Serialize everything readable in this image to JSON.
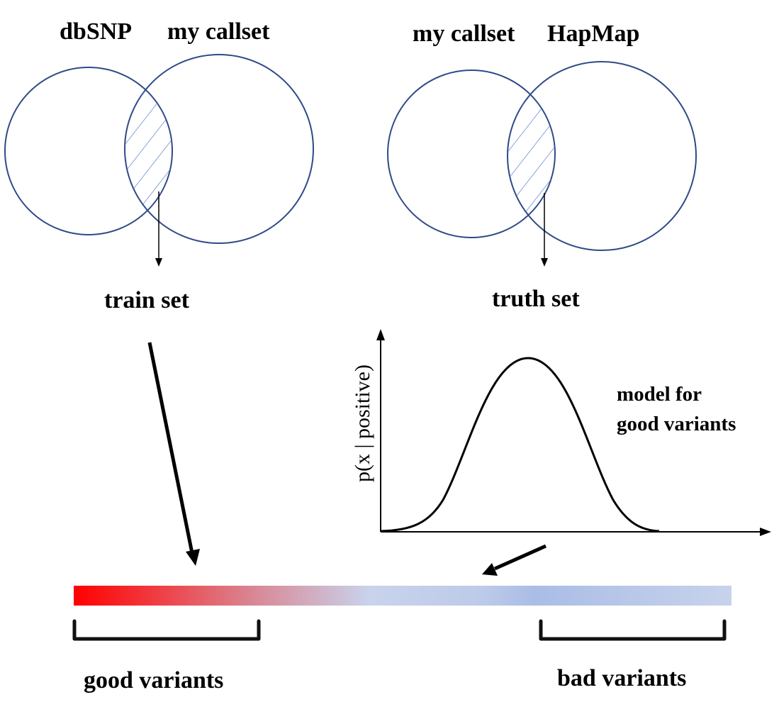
{
  "venn_left": {
    "set_a": "dbSNP",
    "set_b": "my callset",
    "result": "train set"
  },
  "venn_right": {
    "set_a": "my callset",
    "set_b": "HapMap",
    "result": "truth set"
  },
  "model": {
    "ylabel": "p(x | positive)",
    "caption_line1": "model for",
    "caption_line2": "good variants"
  },
  "score_bar": {
    "good_label": "good variants",
    "bad_label": "bad variants"
  },
  "colors": {
    "circle_stroke": "#2f4a86",
    "hatch": "#4a74c0",
    "bar_red": "#ff0000",
    "bar_blue": "#aabde6",
    "bar_light": "#c7d3ec"
  }
}
